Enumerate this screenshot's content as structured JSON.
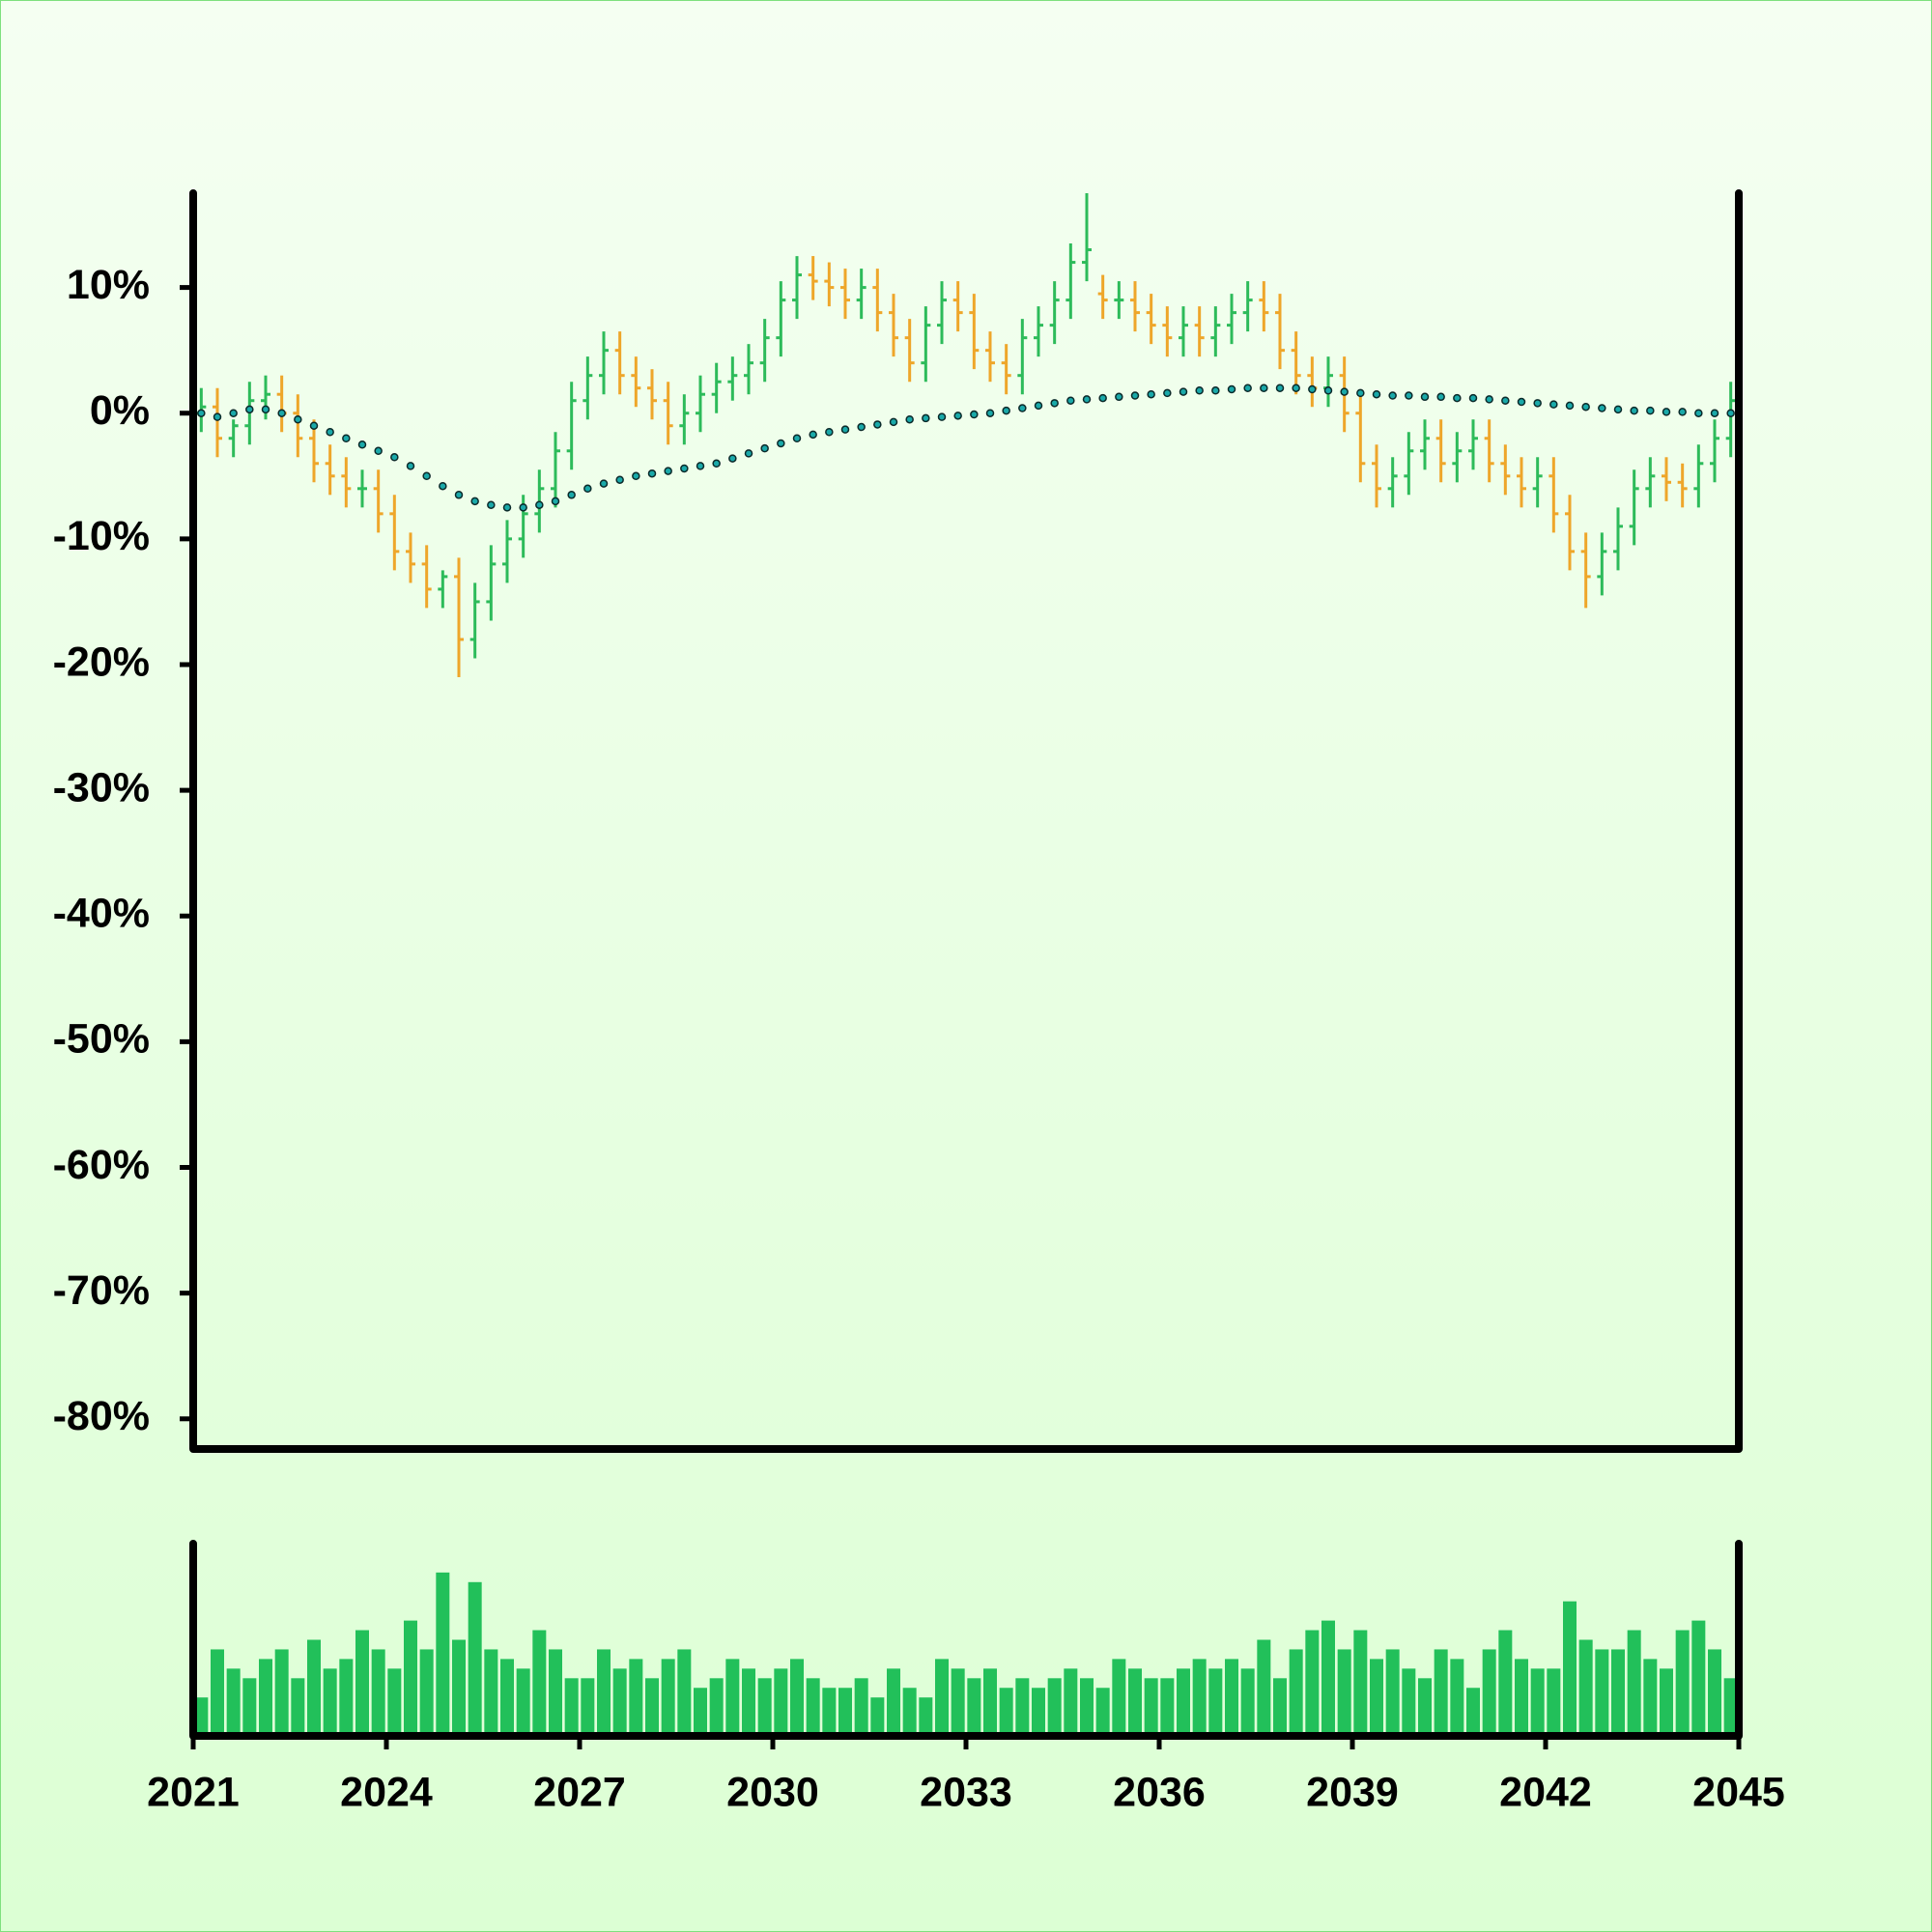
{
  "chart_data": {
    "type": "ohlc",
    "up_color": "#2dbb5a",
    "down_color": "#eea62a",
    "x": [
      2021.125,
      2021.375,
      2021.625,
      2021.875,
      2022.125,
      2022.375,
      2022.625,
      2022.875,
      2023.125,
      2023.375,
      2023.625,
      2023.875,
      2024.125,
      2024.375,
      2024.625,
      2024.875,
      2025.125,
      2025.375,
      2025.625,
      2025.875,
      2026.125,
      2026.375,
      2026.625,
      2026.875,
      2027.125,
      2027.375,
      2027.625,
      2027.875,
      2028.125,
      2028.375,
      2028.625,
      2028.875,
      2029.125,
      2029.375,
      2029.625,
      2029.875,
      2030.125,
      2030.375,
      2030.625,
      2030.875,
      2031.125,
      2031.375,
      2031.625,
      2031.875,
      2032.125,
      2032.375,
      2032.625,
      2032.875,
      2033.125,
      2033.375,
      2033.625,
      2033.875,
      2034.125,
      2034.375,
      2034.625,
      2034.875,
      2035.125,
      2035.375,
      2035.625,
      2035.875,
      2036.125,
      2036.375,
      2036.625,
      2036.875,
      2037.125,
      2037.375,
      2037.625,
      2037.875,
      2038.125,
      2038.375,
      2038.625,
      2038.875,
      2039.125,
      2039.375,
      2039.625,
      2039.875,
      2040.125,
      2040.375,
      2040.625,
      2040.875,
      2041.125,
      2041.375,
      2041.625,
      2041.875,
      2042.125,
      2042.375,
      2042.625,
      2042.875,
      2043.125,
      2043.375,
      2043.625,
      2043.875,
      2044.125,
      2044.375,
      2044.625,
      2044.875
    ],
    "open": [
      0,
      0.5,
      -2,
      -1,
      1,
      1.5,
      0,
      -2,
      -4,
      -5,
      -6,
      -6,
      -8,
      -11,
      -12,
      -14,
      -13,
      -18,
      -15,
      -12,
      -10,
      -8,
      -6,
      -3,
      1,
      3,
      5,
      3,
      2,
      1,
      -1,
      0,
      1.5,
      2.5,
      3,
      4,
      6,
      9,
      11,
      10.5,
      10,
      9,
      10,
      8,
      6,
      4,
      7,
      9,
      8,
      5,
      4,
      3,
      6,
      7,
      9,
      12,
      9.5,
      9,
      9,
      8,
      7,
      6,
      7,
      6,
      7,
      8,
      9,
      8,
      5,
      3,
      2,
      3,
      0,
      -4,
      -6,
      -5,
      -3,
      -2,
      -4,
      -3,
      -2,
      -4,
      -5,
      -6,
      -5,
      -8,
      -11,
      -13,
      -11,
      -9,
      -6,
      -5,
      -5.5,
      -6,
      -4,
      -2
    ],
    "high": [
      2,
      2,
      -0.5,
      2.5,
      3,
      3,
      1.5,
      -0.5,
      -2.5,
      -3.5,
      -4.5,
      -4.5,
      -6.5,
      -9.5,
      -10.5,
      -12.5,
      -11.5,
      -13.5,
      -10.5,
      -8.5,
      -6.5,
      -4.5,
      -1.5,
      2.5,
      4.5,
      6.5,
      6.5,
      4.5,
      3.5,
      2.5,
      1.5,
      3,
      4,
      4.5,
      5.5,
      7.5,
      10.5,
      12.5,
      12.5,
      12,
      11.5,
      11.5,
      11.5,
      9.5,
      7.5,
      8.5,
      10.5,
      10.5,
      9.5,
      6.5,
      5.5,
      7.5,
      8.5,
      10.5,
      13.5,
      17.5,
      11,
      10.5,
      10.5,
      9.5,
      8.5,
      8.5,
      8.5,
      8.5,
      9.5,
      10.5,
      10.5,
      9.5,
      6.5,
      4.5,
      4.5,
      4.5,
      1.5,
      -2.5,
      -3.5,
      -1.5,
      -0.5,
      -0.5,
      -1.5,
      -0.5,
      -0.5,
      -2.5,
      -3.5,
      -3.5,
      -3.5,
      -6.5,
      -9.5,
      -9.5,
      -7.5,
      -4.5,
      -3.5,
      -3.5,
      -4,
      -2.5,
      -0.5,
      2.5
    ],
    "low": [
      -1.5,
      -3.5,
      -3.5,
      -2.5,
      -0.5,
      -1.5,
      -3.5,
      -5.5,
      -6.5,
      -7.5,
      -7.5,
      -9.5,
      -12.5,
      -13.5,
      -15.5,
      -15.5,
      -21,
      -19.5,
      -16.5,
      -13.5,
      -11.5,
      -9.5,
      -7.5,
      -4.5,
      -0.5,
      1.5,
      1.5,
      0.5,
      -0.5,
      -2.5,
      -2.5,
      -1.5,
      0,
      1,
      1.5,
      2.5,
      4.5,
      7.5,
      9,
      8.5,
      7.5,
      7.5,
      6.5,
      4.5,
      2.5,
      2.5,
      5.5,
      6.5,
      3.5,
      2.5,
      1.5,
      1.5,
      4.5,
      5.5,
      7.5,
      10.5,
      7.5,
      7.5,
      6.5,
      5.5,
      4.5,
      4.5,
      4.5,
      4.5,
      5.5,
      6.5,
      6.5,
      3.5,
      1.5,
      0.5,
      0.5,
      -1.5,
      -5.5,
      -7.5,
      -7.5,
      -6.5,
      -4.5,
      -5.5,
      -5.5,
      -4.5,
      -5.5,
      -6.5,
      -7.5,
      -7.5,
      -9.5,
      -12.5,
      -15.5,
      -14.5,
      -12.5,
      -10.5,
      -7.5,
      -7,
      -7.5,
      -7.5,
      -5.5,
      -3.5
    ],
    "close": [
      0.5,
      -2,
      -1,
      1,
      1.5,
      0,
      -2,
      -4,
      -5,
      -6,
      -6,
      -8,
      -11,
      -12,
      -14,
      -13,
      -18,
      -15,
      -12,
      -10,
      -8,
      -6,
      -3,
      1,
      3,
      5,
      3,
      2,
      1,
      -1,
      0,
      1.5,
      2.5,
      3,
      4,
      6,
      9,
      11,
      10.5,
      10,
      9,
      10,
      8,
      6,
      4,
      7,
      9,
      8,
      5,
      4,
      3,
      6,
      7,
      9,
      12,
      13,
      9,
      9,
      8,
      7,
      6,
      7,
      6,
      7,
      8,
      9,
      8,
      5,
      3,
      2,
      3,
      0,
      -4,
      -6,
      -5,
      -3,
      -2,
      -4,
      -3,
      -2,
      -4,
      -5,
      -6,
      -5,
      -8,
      -11,
      -13,
      -11,
      -9,
      -6,
      -5,
      -5.5,
      -6,
      -4,
      -2,
      1
    ],
    "ma": {
      "color": "#1aa9a9",
      "values": [
        0,
        -0.3,
        0,
        0.3,
        0.3,
        0,
        -0.5,
        -1,
        -1.5,
        -2,
        -2.5,
        -3,
        -3.5,
        -4.2,
        -5,
        -5.8,
        -6.5,
        -7,
        -7.3,
        -7.5,
        -7.5,
        -7.3,
        -7,
        -6.5,
        -6,
        -5.6,
        -5.3,
        -5,
        -4.8,
        -4.6,
        -4.4,
        -4.2,
        -4,
        -3.6,
        -3.2,
        -2.8,
        -2.4,
        -2,
        -1.7,
        -1.5,
        -1.3,
        -1.1,
        -0.9,
        -0.7,
        -0.5,
        -0.4,
        -0.3,
        -0.2,
        -0.1,
        0,
        0.2,
        0.4,
        0.6,
        0.8,
        1,
        1.1,
        1.2,
        1.3,
        1.4,
        1.5,
        1.6,
        1.7,
        1.8,
        1.8,
        1.9,
        2,
        2,
        2,
        2,
        1.9,
        1.8,
        1.7,
        1.6,
        1.5,
        1.4,
        1.4,
        1.3,
        1.3,
        1.2,
        1.2,
        1.1,
        1,
        0.9,
        0.8,
        0.7,
        0.6,
        0.5,
        0.4,
        0.3,
        0.2,
        0.2,
        0.1,
        0.1,
        0,
        0,
        0
      ]
    },
    "volume": {
      "color": "#22c05a",
      "ylim": [
        0,
        100
      ],
      "values": [
        20,
        45,
        35,
        30,
        40,
        45,
        30,
        50,
        35,
        40,
        55,
        45,
        35,
        60,
        45,
        85,
        50,
        80,
        45,
        40,
        35,
        55,
        45,
        30,
        30,
        45,
        35,
        40,
        30,
        40,
        45,
        25,
        30,
        40,
        35,
        30,
        35,
        40,
        30,
        25,
        25,
        30,
        20,
        35,
        25,
        20,
        40,
        35,
        30,
        35,
        25,
        30,
        25,
        30,
        35,
        30,
        25,
        40,
        35,
        30,
        30,
        35,
        40,
        35,
        40,
        35,
        50,
        30,
        45,
        55,
        60,
        45,
        55,
        40,
        45,
        35,
        30,
        45,
        40,
        25,
        45,
        55,
        40,
        35,
        35,
        70,
        50,
        45,
        45,
        55,
        40,
        35,
        55,
        60,
        45,
        30
      ]
    },
    "xlim": [
      2021,
      2045
    ],
    "xticks": [
      2021,
      2024,
      2027,
      2030,
      2033,
      2036,
      2039,
      2042,
      2045
    ],
    "ylim": [
      -82.4,
      17.5
    ],
    "yticks": [
      {
        "value": 10,
        "label": "10%"
      },
      {
        "value": 0,
        "label": "0%"
      },
      {
        "value": -10,
        "label": "-10%"
      },
      {
        "value": -20,
        "label": "-20%"
      },
      {
        "value": -30,
        "label": "-30%"
      },
      {
        "value": -40,
        "label": "-40%"
      },
      {
        "value": -50,
        "label": "-50%"
      },
      {
        "value": -60,
        "label": "-60%"
      },
      {
        "value": -70,
        "label": "-70%"
      },
      {
        "value": -80,
        "label": "-80%"
      }
    ]
  }
}
